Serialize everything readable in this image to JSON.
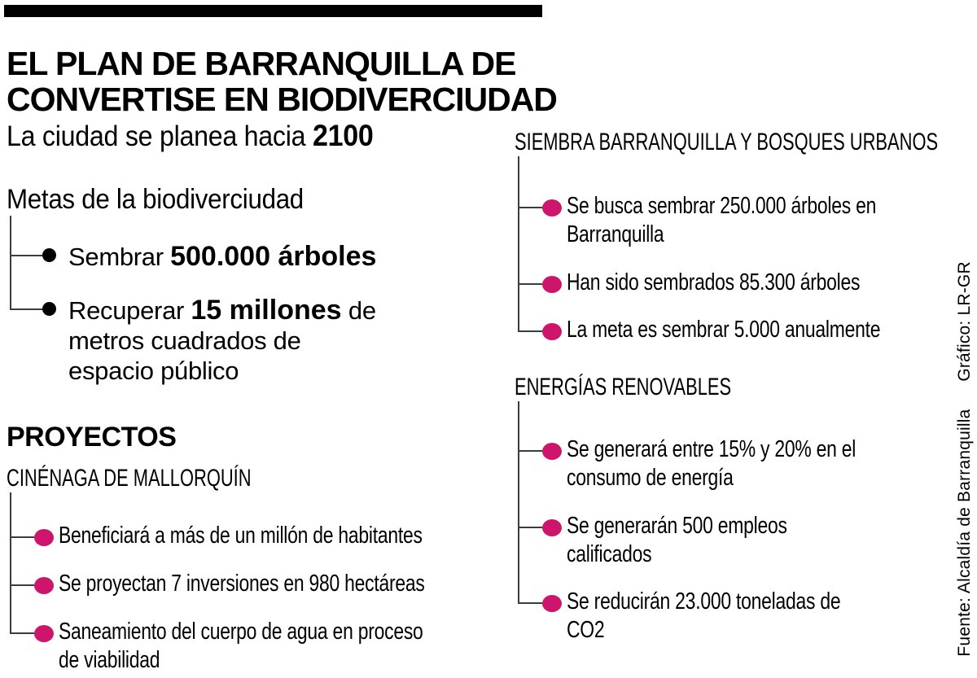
{
  "palette": {
    "accent": "#ce156c",
    "ink": "#000000",
    "line": "#3c3c3c",
    "background": "#ffffff"
  },
  "header": {
    "title": "EL PLAN DE BARRANQUILLA DE\nCONVERTISE EN BIODIVERCIUDAD"
  },
  "left": {
    "intro_pre": "La ciudad se planea hacia ",
    "intro_bold": "2100",
    "metas_title": "Metas de la biodiverciudad",
    "metas": [
      {
        "pre": "Sembrar ",
        "bold": "500.000 árboles",
        "post": ""
      },
      {
        "pre": "Recuperar ",
        "bold": "15 millones",
        "post": " de\nmetros cuadrados de\nespacio público"
      }
    ],
    "proyectos_title": "PROYECTOS",
    "cienaga_title": "CINÉNAGA DE MALLORQUÍN",
    "cienaga_items": [
      "Beneficiará a más de un millón de habitantes",
      "Se proyectan 7 inversiones en 980 hectáreas",
      "Saneamiento del cuerpo de agua en proceso\nde viabilidad"
    ]
  },
  "right": {
    "siembra_title": "SIEMBRA BARRANQUILLA Y BOSQUES URBANOS",
    "siembra_items": [
      "Se busca sembrar 250.000 árboles en\nBarranquilla",
      "Han sido sembrados 85.300 árboles",
      "La meta es sembrar 5.000 anualmente"
    ],
    "energias_title": "ENERGÍAS RENOVABLES",
    "energias_items": [
      "Se generará entre 15% y 20% en el\nconsumo de energía",
      "Se generarán 500 empleos\ncalificados",
      "Se reducirán 23.000 toneladas de\nCO2"
    ]
  },
  "source": {
    "fuente": "Fuente: Alcaldía de Barranquilla",
    "grafico": "Gráfico: LR-GR"
  }
}
